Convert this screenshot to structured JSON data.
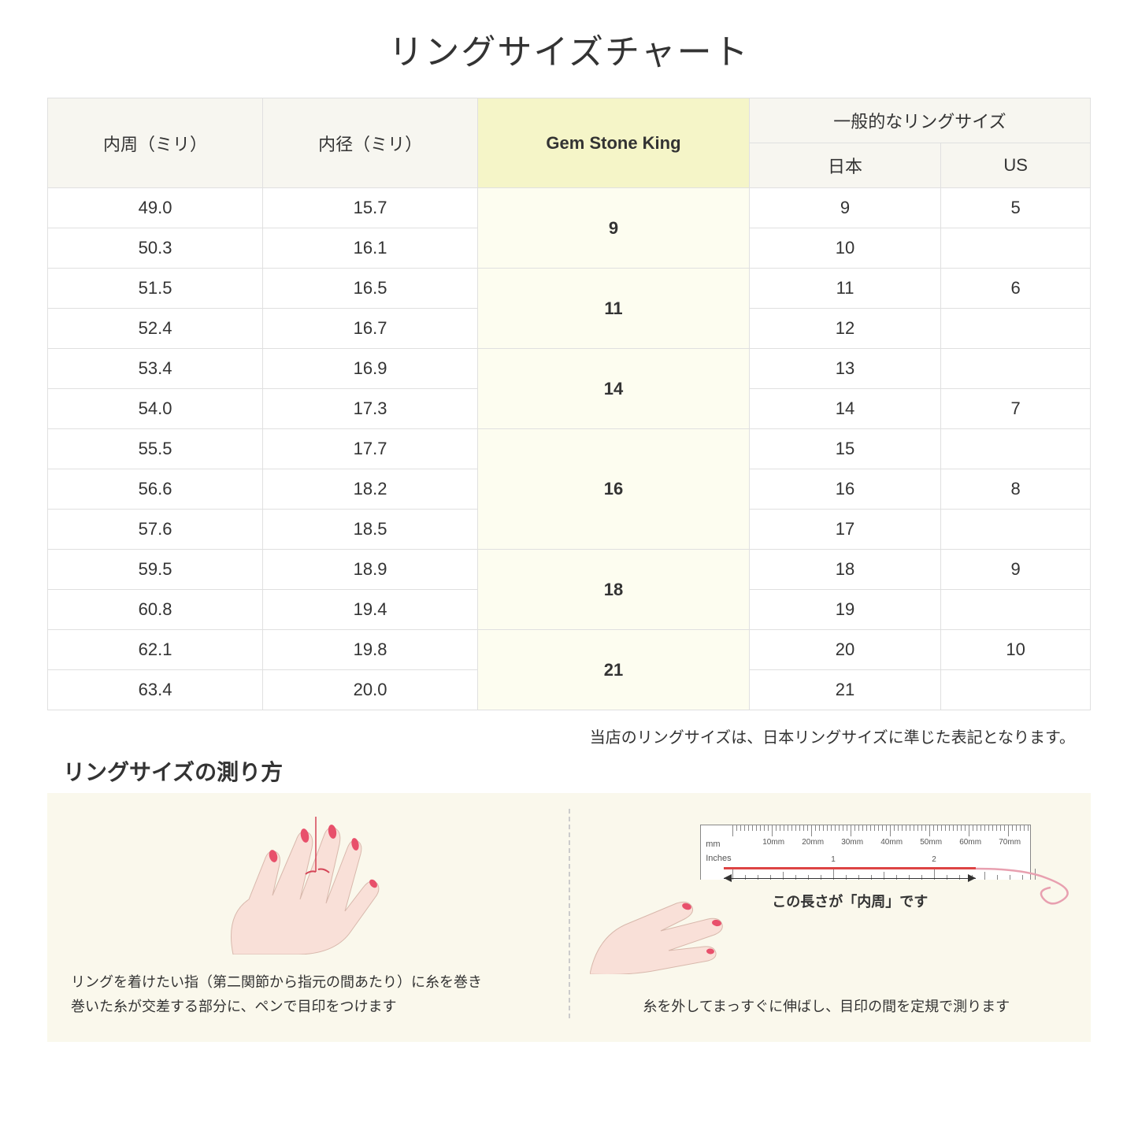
{
  "title": "リングサイズチャート",
  "headers": {
    "circumference": "内周（ミリ）",
    "diameter": "内径（ミリ）",
    "gsk": "Gem Stone King",
    "common": "一般的なリングサイズ",
    "jp": "日本",
    "us": "US"
  },
  "groups": [
    {
      "gsk": "9",
      "rows": [
        {
          "c": "49.0",
          "d": "15.7",
          "jp": "9",
          "us": "5"
        },
        {
          "c": "50.3",
          "d": "16.1",
          "jp": "10",
          "us": ""
        }
      ]
    },
    {
      "gsk": "11",
      "rows": [
        {
          "c": "51.5",
          "d": "16.5",
          "jp": "11",
          "us": "6"
        },
        {
          "c": "52.4",
          "d": "16.7",
          "jp": "12",
          "us": ""
        }
      ]
    },
    {
      "gsk": "14",
      "rows": [
        {
          "c": "53.4",
          "d": "16.9",
          "jp": "13",
          "us": ""
        },
        {
          "c": "54.0",
          "d": "17.3",
          "jp": "14",
          "us": "7"
        }
      ]
    },
    {
      "gsk": "16",
      "rows": [
        {
          "c": "55.5",
          "d": "17.7",
          "jp": "15",
          "us": ""
        },
        {
          "c": "56.6",
          "d": "18.2",
          "jp": "16",
          "us": "8"
        },
        {
          "c": "57.6",
          "d": "18.5",
          "jp": "17",
          "us": ""
        }
      ]
    },
    {
      "gsk": "18",
      "rows": [
        {
          "c": "59.5",
          "d": "18.9",
          "jp": "18",
          "us": "9"
        },
        {
          "c": "60.8",
          "d": "19.4",
          "jp": "19",
          "us": ""
        }
      ]
    },
    {
      "gsk": "21",
      "rows": [
        {
          "c": "62.1",
          "d": "19.8",
          "jp": "20",
          "us": "10"
        },
        {
          "c": "63.4",
          "d": "20.0",
          "jp": "21",
          "us": ""
        }
      ]
    }
  ],
  "note": "当店のリングサイズは、日本リングサイズに準じた表記となります。",
  "subtitle": "リングサイズの測り方",
  "step1_line1": "リングを着けたい指（第二関節から指元の間あたり）に糸を巻き",
  "step1_line2": "巻いた糸が交差する部分に、ペンで目印をつけます",
  "step2_measure": "この長さが「内周」です",
  "step2_caption": "糸を外してまっすぐに伸ばし、目印の間を定規で測ります",
  "ruler": {
    "unit_mm": "mm",
    "unit_in": "Inches",
    "mm_labels": [
      "10mm",
      "20mm",
      "30mm",
      "40mm",
      "50mm",
      "60mm",
      "70mm"
    ],
    "in_labels": [
      "1",
      "2"
    ]
  },
  "colors": {
    "header_bg": "#f7f6f0",
    "gsk_header_bg": "#f5f5c8",
    "gsk_cell_bg": "#fdfdf0",
    "border": "#e0e0e0",
    "instructions_bg": "#faf8ec",
    "skin": "#f9e0d8",
    "nail": "#e8506b",
    "thread": "#d44456"
  }
}
